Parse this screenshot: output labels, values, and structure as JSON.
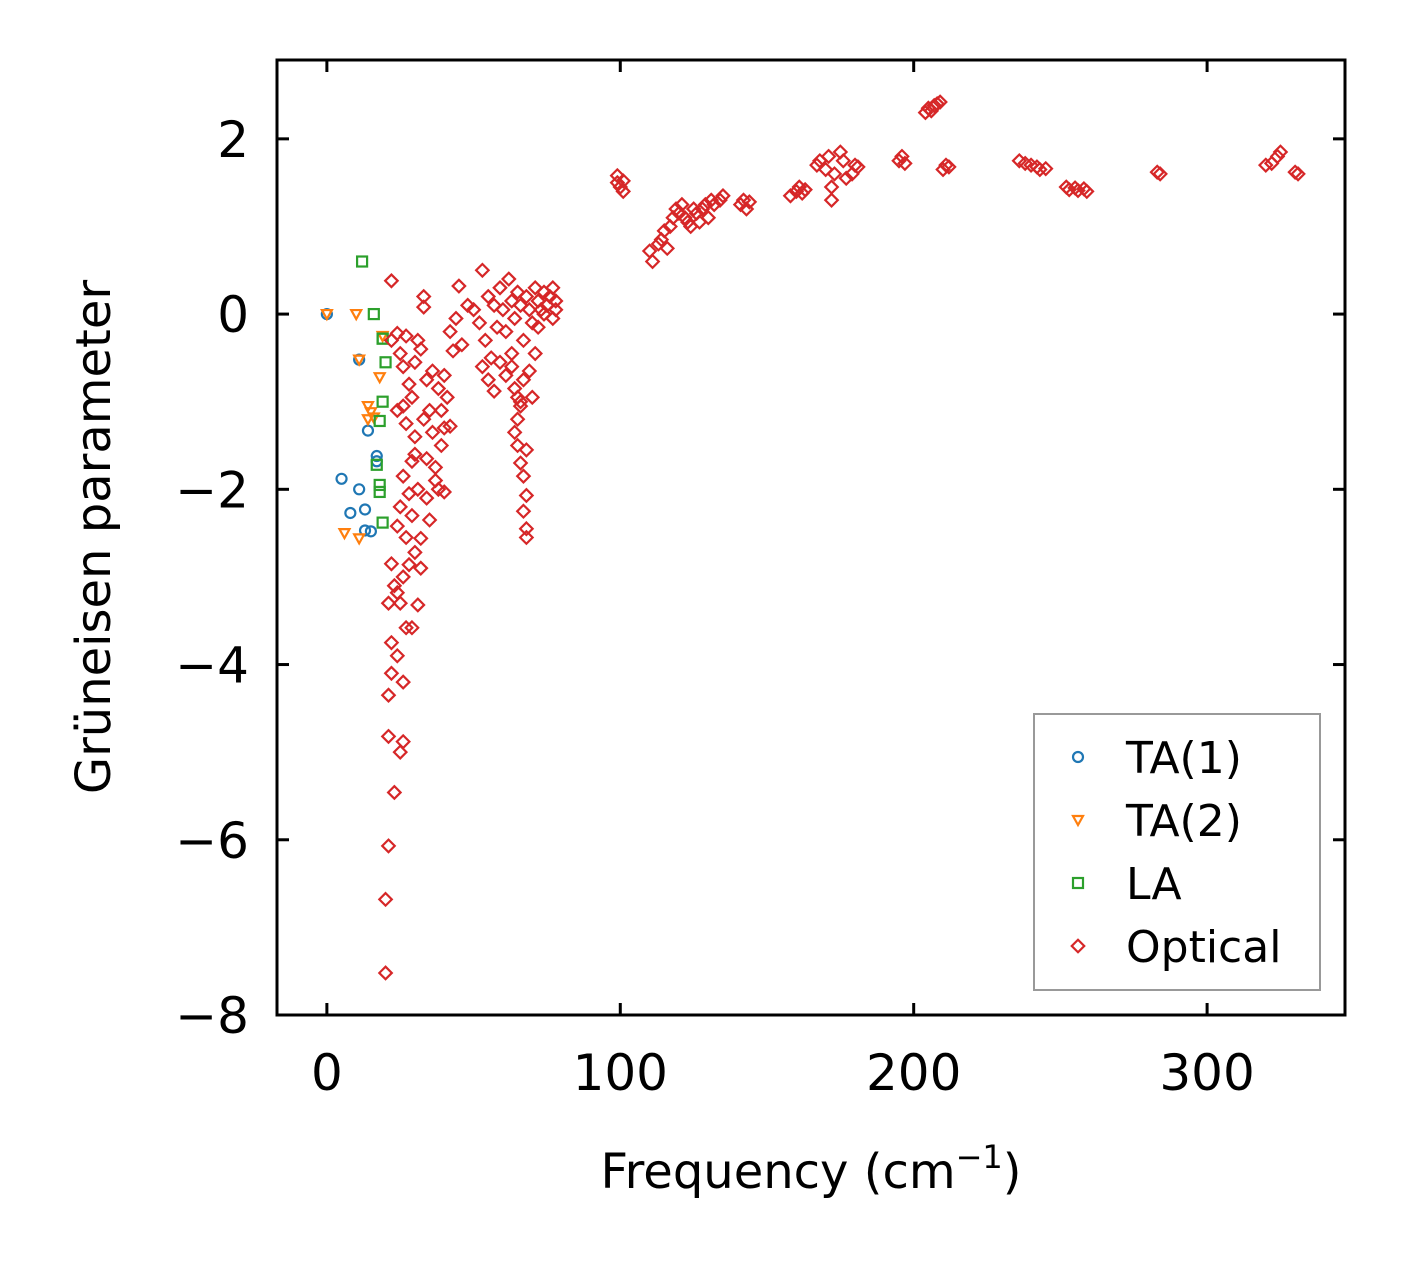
{
  "chart_data": {
    "type": "scatter",
    "title": "",
    "xlabel": "Frequency (cm",
    "xlabel_sup": "−1",
    "xlabel_close": ")",
    "ylabel": "Grüneisen parameter",
    "xlim": [
      -17,
      347
    ],
    "ylim": [
      -8,
      2.9
    ],
    "xticks": [
      0,
      100,
      200,
      300
    ],
    "yticks": [
      -8,
      -6,
      -4,
      -2,
      0,
      2
    ],
    "xtick_labels": [
      "0",
      "100",
      "200",
      "300"
    ],
    "ytick_labels": [
      "−8",
      "−6",
      "−4",
      "−2",
      "0",
      "2"
    ],
    "legend_position": "lower-right",
    "series": [
      {
        "name": "TA(1)",
        "marker": "circle",
        "color": "#1f77b4",
        "points": [
          [
            0,
            0
          ],
          [
            11,
            -0.52
          ],
          [
            14,
            -1.33
          ],
          [
            17,
            -1.62
          ],
          [
            5,
            -1.88
          ],
          [
            11,
            -2.0
          ],
          [
            8,
            -2.27
          ],
          [
            13,
            -2.23
          ],
          [
            13,
            -2.47
          ],
          [
            15,
            -2.48
          ],
          [
            17,
            -1.68
          ]
        ]
      },
      {
        "name": "TA(2)",
        "marker": "triangle-down",
        "color": "#ff7f0e",
        "points": [
          [
            0,
            0
          ],
          [
            10,
            0
          ],
          [
            11,
            -0.52
          ],
          [
            18,
            -0.72
          ],
          [
            14,
            -1.05
          ],
          [
            15,
            -1.12
          ],
          [
            14,
            -1.2
          ],
          [
            16,
            -1.18
          ],
          [
            6,
            -2.5
          ],
          [
            11,
            -2.56
          ],
          [
            19,
            -0.25
          ]
        ]
      },
      {
        "name": "LA",
        "marker": "square",
        "color": "#2ca02c",
        "points": [
          [
            12,
            0.6
          ],
          [
            16,
            0
          ],
          [
            19,
            -0.28
          ],
          [
            20,
            -0.55
          ],
          [
            19,
            -1.0
          ],
          [
            18,
            -1.22
          ],
          [
            17,
            -1.72
          ],
          [
            18,
            -1.95
          ],
          [
            18,
            -2.03
          ],
          [
            19,
            -2.38
          ],
          [
            19,
            -0.28
          ]
        ]
      },
      {
        "name": "Optical",
        "marker": "diamond",
        "color": "#d62728",
        "points": [
          [
            20,
            -7.52
          ],
          [
            20,
            -6.68
          ],
          [
            21,
            -6.07
          ],
          [
            23,
            -5.46
          ],
          [
            25,
            -5.0
          ],
          [
            26,
            -4.88
          ],
          [
            21,
            -4.82
          ],
          [
            21,
            -4.35
          ],
          [
            22,
            -4.1
          ],
          [
            24,
            -3.9
          ],
          [
            22,
            -3.75
          ],
          [
            26,
            -4.2
          ],
          [
            27,
            -3.58
          ],
          [
            29,
            -3.58
          ],
          [
            25,
            -3.3
          ],
          [
            31,
            -3.32
          ],
          [
            21,
            -3.3
          ],
          [
            23,
            -3.1
          ],
          [
            24,
            -3.18
          ],
          [
            26,
            -3.0
          ],
          [
            22,
            -2.85
          ],
          [
            22,
            -0.3
          ],
          [
            24,
            -0.22
          ],
          [
            24,
            -1.1
          ],
          [
            27,
            -1.25
          ],
          [
            30,
            -1.4
          ],
          [
            33,
            -1.2
          ],
          [
            35,
            -1.1
          ],
          [
            36,
            -1.35
          ],
          [
            39,
            -1.5
          ],
          [
            40,
            -1.3
          ],
          [
            42,
            -1.28
          ],
          [
            29,
            -1.68
          ],
          [
            26,
            -1.85
          ],
          [
            31,
            -2.0
          ],
          [
            34,
            -2.1
          ],
          [
            37,
            -1.9
          ],
          [
            29,
            -2.3
          ],
          [
            27,
            -2.55
          ],
          [
            30,
            -2.72
          ],
          [
            32,
            -2.56
          ],
          [
            35,
            -2.35
          ],
          [
            38,
            -2.0
          ],
          [
            40,
            -2.03
          ],
          [
            25,
            -2.2
          ],
          [
            28,
            -2.05
          ],
          [
            24,
            -2.42
          ],
          [
            32,
            -2.9
          ],
          [
            28,
            -2.86
          ],
          [
            26,
            -0.6
          ],
          [
            28,
            -0.8
          ],
          [
            30,
            -0.55
          ],
          [
            32,
            -0.4
          ],
          [
            29,
            -0.95
          ],
          [
            34,
            -0.75
          ],
          [
            36,
            -0.65
          ],
          [
            38,
            -0.85
          ],
          [
            40,
            -0.7
          ],
          [
            27,
            -0.25
          ],
          [
            31,
            -0.3
          ],
          [
            25,
            -0.45
          ],
          [
            33,
            0.2
          ],
          [
            33,
            0.08
          ],
          [
            22,
            0.38
          ],
          [
            26,
            -1.05
          ],
          [
            30,
            -1.6
          ],
          [
            34,
            -1.65
          ],
          [
            37,
            -1.75
          ],
          [
            39,
            -1.1
          ],
          [
            41,
            -0.95
          ],
          [
            42,
            -0.2
          ],
          [
            44,
            -0.05
          ],
          [
            46,
            -0.35
          ],
          [
            43,
            -0.42
          ],
          [
            45,
            0.32
          ],
          [
            48,
            0.1
          ],
          [
            50,
            0.05
          ],
          [
            52,
            -0.1
          ],
          [
            53,
            0.5
          ],
          [
            54,
            -0.3
          ],
          [
            55,
            0.2
          ],
          [
            57,
            0.1
          ],
          [
            58,
            -0.15
          ],
          [
            56,
            -0.5
          ],
          [
            59,
            0.3
          ],
          [
            60,
            0.05
          ],
          [
            61,
            -0.2
          ],
          [
            62,
            0.4
          ],
          [
            63,
            0.15
          ],
          [
            64,
            -0.05
          ],
          [
            65,
            0.25
          ],
          [
            66,
            0.1
          ],
          [
            67,
            -0.3
          ],
          [
            68,
            0.2
          ],
          [
            69,
            0.05
          ],
          [
            70,
            -0.1
          ],
          [
            71,
            0.3
          ],
          [
            72,
            0.15
          ],
          [
            73,
            0.05
          ],
          [
            74,
            0.25
          ],
          [
            75,
            0.1
          ],
          [
            76,
            0.2
          ],
          [
            77,
            0.3
          ],
          [
            78,
            0.15
          ],
          [
            78,
            0.05
          ],
          [
            77,
            -0.05
          ],
          [
            74,
            0.0
          ],
          [
            72,
            -0.15
          ],
          [
            71,
            -0.45
          ],
          [
            53,
            -0.6
          ],
          [
            55,
            -0.75
          ],
          [
            57,
            -0.88
          ],
          [
            59,
            -0.55
          ],
          [
            61,
            -0.7
          ],
          [
            63,
            -0.45
          ],
          [
            64,
            -0.85
          ],
          [
            66,
            -1.0
          ],
          [
            65,
            -1.2
          ],
          [
            64,
            -1.35
          ],
          [
            65,
            -1.5
          ],
          [
            66,
            -1.7
          ],
          [
            67,
            -1.85
          ],
          [
            68,
            -2.07
          ],
          [
            67,
            -2.25
          ],
          [
            68,
            -2.45
          ],
          [
            68,
            -2.55
          ],
          [
            68,
            -1.55
          ],
          [
            66,
            -1.05
          ],
          [
            63,
            -0.6
          ],
          [
            70,
            -0.95
          ],
          [
            65,
            -0.95
          ],
          [
            67,
            -0.75
          ],
          [
            69,
            -0.65
          ],
          [
            99,
            1.5
          ],
          [
            100,
            1.45
          ],
          [
            101,
            1.4
          ],
          [
            99,
            1.58
          ],
          [
            101,
            1.52
          ],
          [
            110,
            0.72
          ],
          [
            111,
            0.6
          ],
          [
            113,
            0.8
          ],
          [
            114,
            0.85
          ],
          [
            115,
            0.95
          ],
          [
            116,
            0.75
          ],
          [
            117,
            1.0
          ],
          [
            118,
            1.1
          ],
          [
            119,
            1.2
          ],
          [
            120,
            1.15
          ],
          [
            121,
            1.25
          ],
          [
            122,
            1.1
          ],
          [
            123,
            1.05
          ],
          [
            124,
            1.0
          ],
          [
            125,
            1.2
          ],
          [
            126,
            1.15
          ],
          [
            127,
            1.05
          ],
          [
            128,
            1.2
          ],
          [
            129,
            1.25
          ],
          [
            130,
            1.1
          ],
          [
            131,
            1.3
          ],
          [
            132,
            1.25
          ],
          [
            134,
            1.3
          ],
          [
            135,
            1.35
          ],
          [
            141,
            1.25
          ],
          [
            142,
            1.3
          ],
          [
            143,
            1.2
          ],
          [
            144,
            1.28
          ],
          [
            158,
            1.35
          ],
          [
            160,
            1.4
          ],
          [
            161,
            1.45
          ],
          [
            163,
            1.42
          ],
          [
            162,
            1.38
          ],
          [
            167,
            1.7
          ],
          [
            168,
            1.75
          ],
          [
            170,
            1.65
          ],
          [
            171,
            1.8
          ],
          [
            172,
            1.45
          ],
          [
            172,
            1.3
          ],
          [
            173,
            1.6
          ],
          [
            175,
            1.85
          ],
          [
            176,
            1.75
          ],
          [
            177,
            1.55
          ],
          [
            179,
            1.6
          ],
          [
            180,
            1.7
          ],
          [
            181,
            1.68
          ],
          [
            195,
            1.75
          ],
          [
            196,
            1.8
          ],
          [
            197,
            1.72
          ],
          [
            204,
            2.3
          ],
          [
            205,
            2.35
          ],
          [
            206,
            2.32
          ],
          [
            207,
            2.38
          ],
          [
            208,
            2.4
          ],
          [
            209,
            2.42
          ],
          [
            210,
            1.65
          ],
          [
            211,
            1.7
          ],
          [
            212,
            1.68
          ],
          [
            236,
            1.75
          ],
          [
            238,
            1.72
          ],
          [
            240,
            1.7
          ],
          [
            242,
            1.68
          ],
          [
            243,
            1.65
          ],
          [
            245,
            1.66
          ],
          [
            252,
            1.45
          ],
          [
            253,
            1.42
          ],
          [
            255,
            1.44
          ],
          [
            256,
            1.41
          ],
          [
            258,
            1.43
          ],
          [
            259,
            1.4
          ],
          [
            283,
            1.62
          ],
          [
            284,
            1.6
          ],
          [
            320,
            1.7
          ],
          [
            322,
            1.72
          ],
          [
            324,
            1.8
          ],
          [
            325,
            1.85
          ],
          [
            330,
            1.62
          ],
          [
            331,
            1.6
          ]
        ]
      }
    ]
  }
}
